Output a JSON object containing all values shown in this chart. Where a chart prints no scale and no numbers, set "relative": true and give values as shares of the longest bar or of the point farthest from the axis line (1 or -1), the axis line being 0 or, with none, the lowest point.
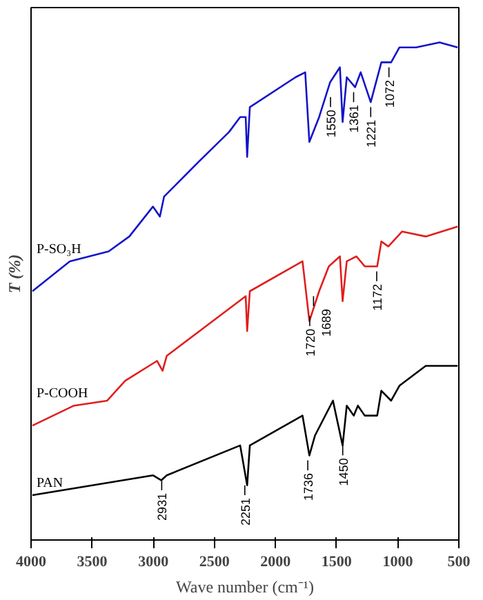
{
  "chart_data": {
    "type": "line",
    "relative": true,
    "xlabel": "Wave number (cm⁻¹)",
    "ylabel": "T (%)",
    "xlim": [
      4000,
      500
    ],
    "xticks": [
      4000,
      3500,
      3000,
      2500,
      2000,
      1500,
      1000,
      500
    ],
    "series": [
      {
        "name": "P-SO₃H",
        "color": "#1414c8",
        "x": [
          3989,
          3683,
          3365,
          3196,
          3003,
          2946,
          2912,
          2629,
          2380,
          2289,
          2244,
          2232,
          2210,
          1836,
          1757,
          1723,
          1643,
          1553,
          1473,
          1451,
          1417,
          1349,
          1303,
          1221,
          1134,
          1054,
          986,
          850,
          658,
          510
        ],
        "values": [
          0.5,
          0.56,
          0.58,
          0.61,
          0.67,
          0.65,
          0.69,
          0.76,
          0.82,
          0.85,
          0.85,
          0.77,
          0.87,
          0.93,
          0.94,
          0.8,
          0.85,
          0.92,
          0.95,
          0.84,
          0.93,
          0.91,
          0.94,
          0.88,
          0.96,
          0.96,
          0.99,
          0.99,
          1.0,
          0.99
        ]
      },
      {
        "name": "P-COOH",
        "color": "#e01e1e",
        "x": [
          3989,
          3649,
          3377,
          3230,
          2969,
          2924,
          2890,
          2244,
          2232,
          2210,
          1779,
          1723,
          1643,
          1564,
          1473,
          1451,
          1417,
          1338,
          1270,
          1168,
          1134,
          1077,
          964,
          771,
          510
        ],
        "values": [
          0.23,
          0.27,
          0.28,
          0.32,
          0.36,
          0.34,
          0.37,
          0.49,
          0.42,
          0.5,
          0.56,
          0.44,
          0.5,
          0.55,
          0.57,
          0.48,
          0.56,
          0.57,
          0.55,
          0.55,
          0.6,
          0.59,
          0.62,
          0.61,
          0.63
        ]
      },
      {
        "name": "PAN",
        "color": "#000000",
        "x": [
          3989,
          3003,
          2935,
          2890,
          2289,
          2232,
          2210,
          1779,
          1723,
          1677,
          1530,
          1451,
          1417,
          1360,
          1326,
          1270,
          1168,
          1134,
          1054,
          986,
          771,
          510
        ],
        "values": [
          0.09,
          0.13,
          0.12,
          0.13,
          0.19,
          0.11,
          0.19,
          0.25,
          0.17,
          0.21,
          0.28,
          0.19,
          0.27,
          0.25,
          0.27,
          0.25,
          0.25,
          0.3,
          0.28,
          0.31,
          0.35,
          0.35
        ]
      }
    ],
    "annotations": [
      {
        "text": "1550",
        "x": 1550,
        "y": 0.89
      },
      {
        "text": "1361",
        "x": 1361,
        "y": 0.9
      },
      {
        "text": "1221",
        "x": 1221,
        "y": 0.87
      },
      {
        "text": "1072",
        "x": 1072,
        "y": 0.95
      },
      {
        "text": "1720",
        "x": 1720,
        "y": 0.45
      },
      {
        "text": "1689",
        "x": 1689,
        "y": 0.49
      },
      {
        "text": "1172",
        "x": 1172,
        "y": 0.54
      },
      {
        "text": "2931",
        "x": 2931,
        "y": 0.12
      },
      {
        "text": "2251",
        "x": 2251,
        "y": 0.11
      },
      {
        "text": "1736",
        "x": 1736,
        "y": 0.16
      },
      {
        "text": "1450",
        "x": 1450,
        "y": 0.19
      }
    ]
  }
}
